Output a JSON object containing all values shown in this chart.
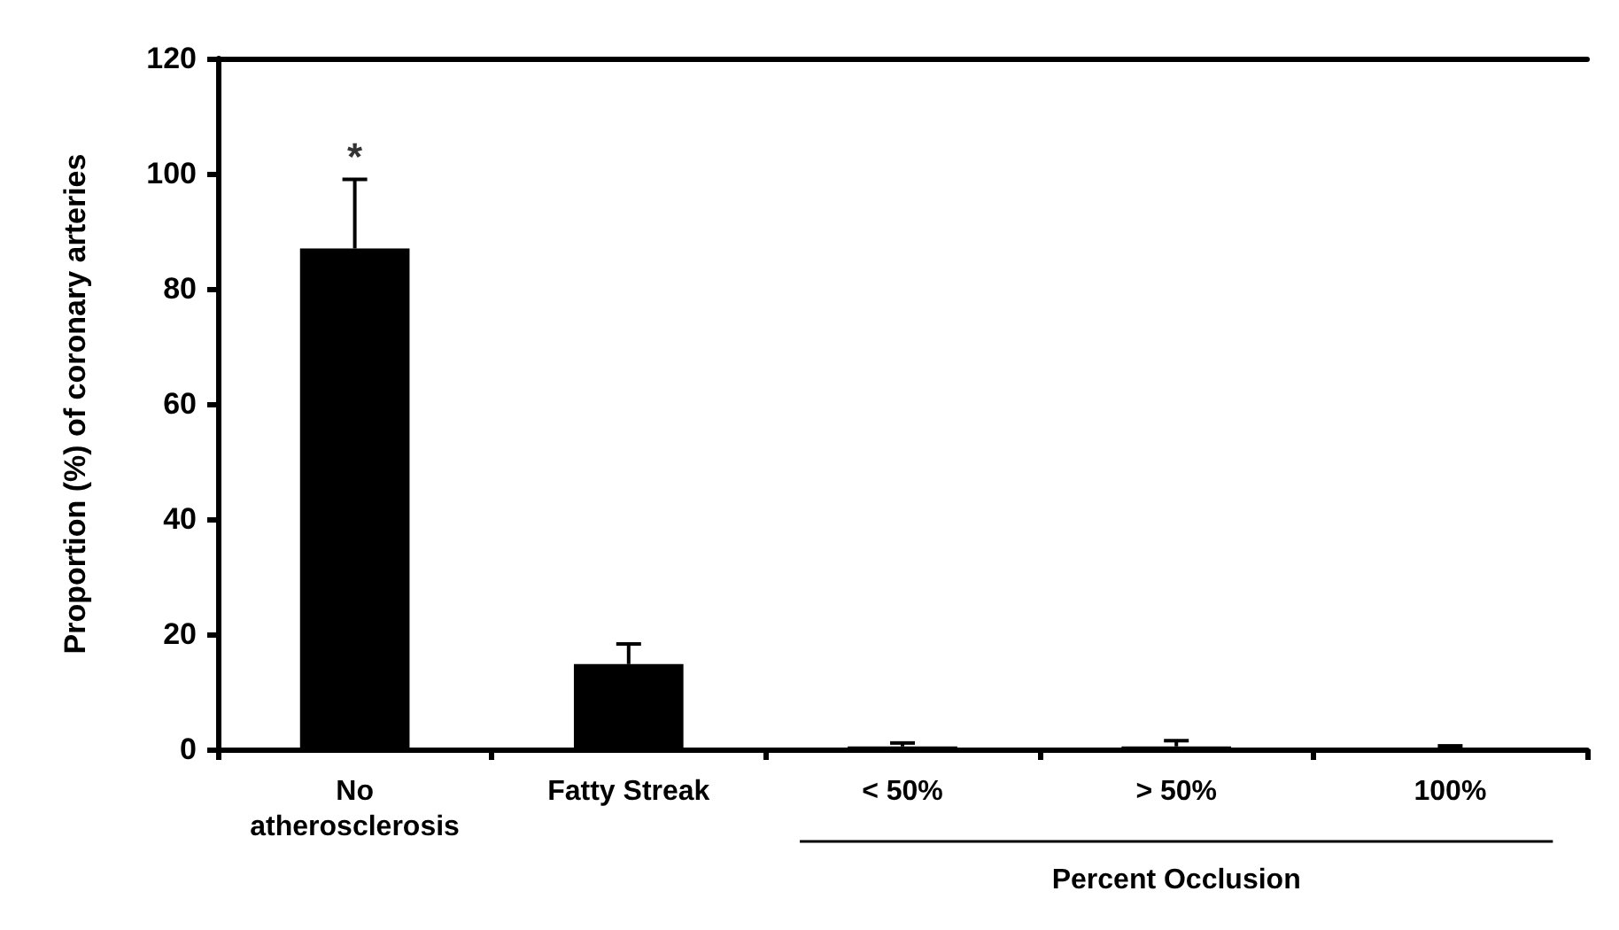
{
  "chart_data": {
    "type": "bar",
    "ylabel": "Proportion (%) of coronary arteries",
    "categories": [
      "No\natherosclerosis",
      "Fatty Streak",
      "< 50%",
      "> 50%",
      "100%"
    ],
    "values": [
      87,
      14.8,
      0.5,
      0.5,
      0.3
    ],
    "errors": [
      [
        87,
        99
      ],
      [
        14.8,
        18.3
      ],
      [
        0.5,
        1.1
      ],
      [
        0.5,
        1.5
      ],
      [
        0.3,
        0.6
      ]
    ],
    "color": "#000000",
    "ylim": [
      0,
      120
    ],
    "yticks": [
      0,
      20,
      40,
      60,
      80,
      100,
      120
    ],
    "grid": false,
    "annotations": [
      {
        "text": "*",
        "x": "No\natherosclerosis",
        "y": 99
      },
      "Percent Occlusion"
    ]
  }
}
